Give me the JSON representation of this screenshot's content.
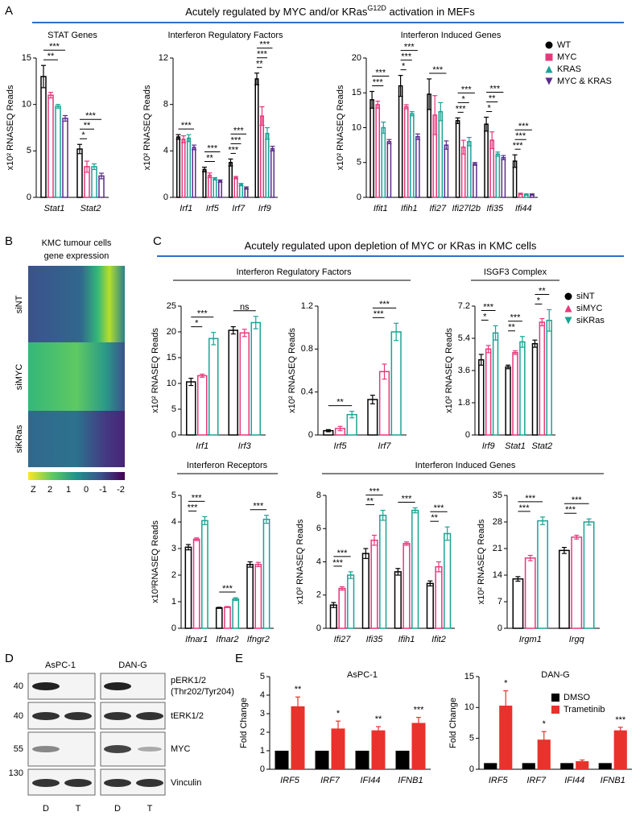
{
  "panel_letters": [
    "A",
    "B",
    "C",
    "D",
    "E"
  ],
  "mef_header": {
    "text": "Acutely regulated by MYC and/or KRas",
    "superscript": "G12D",
    "suffix": " activation in MEFs"
  },
  "kmc_header": "Acutely regulated upon depletion of MYC or KRas in KMC cells",
  "kmc_irf_header": "Interferon Regulatory Factors",
  "kmc_induced_header": "Interferon Induced Genes",
  "heatmap": {
    "title": [
      "KMC tumour cells",
      "gene expression"
    ],
    "rows": [
      "siNT",
      "siMYC",
      "siKRas"
    ],
    "colorbar_label": "Z",
    "colorbar_ticks": [
      2,
      1,
      0,
      -1,
      -2
    ]
  },
  "western_blot": {
    "cell_lines": [
      "AsPC-1",
      "DAN-G"
    ],
    "size_markers": [
      40,
      40,
      55,
      130
    ],
    "proteins": [
      {
        "name": "pERK1/2",
        "detail": "(Thr202/Tyr204)"
      },
      {
        "name": "tERK1/2"
      },
      {
        "name": "MYC"
      },
      {
        "name": "Vinculin"
      }
    ],
    "lanes": [
      "D",
      "T",
      "D",
      "T"
    ]
  },
  "chart_data": [
    {
      "type": "bar",
      "title": "STAT Genes",
      "ylabel": "x10² RNASEQ Reads",
      "bar_style": "outline",
      "categories": [
        "Stat1",
        "Stat2"
      ],
      "ylim": [
        0,
        15
      ],
      "yticks": [
        0,
        5,
        10,
        15
      ],
      "series": [
        {
          "name": "WT",
          "color": "#000000",
          "marker": "circle",
          "values": [
            13,
            5.2
          ],
          "errors": [
            1.2,
            0.5
          ]
        },
        {
          "name": "MYC",
          "color": "#e8377b",
          "marker": "square",
          "values": [
            11,
            3.3
          ],
          "errors": [
            0.3,
            0.6
          ],
          "significance": [
            null,
            "*"
          ]
        },
        {
          "name": "KRAS",
          "color": "#1aa394",
          "marker": "triangle",
          "values": [
            9.8,
            3.3
          ],
          "errors": [
            0.2,
            0.3
          ],
          "significance": [
            "**",
            "**"
          ]
        },
        {
          "name": "MYC & KRAS",
          "color": "#5a2d8c",
          "marker": "triangle-down",
          "values": [
            8.5,
            2.3
          ],
          "errors": [
            0.3,
            0.3
          ],
          "significance": [
            "***",
            "***"
          ]
        }
      ]
    },
    {
      "type": "bar",
      "title": "Interferon Regulatory Factors",
      "ylabel": "x10² RNASEQ Reads",
      "bar_style": "outline",
      "categories": [
        "Irf1",
        "Irf5",
        "Irf7",
        "Irf9"
      ],
      "ylim": [
        0,
        12
      ],
      "yticks": [
        0,
        4,
        8,
        12
      ],
      "series": [
        {
          "name": "WT",
          "color": "#000000",
          "marker": "circle",
          "values": [
            5.2,
            2.4,
            3.0,
            10.2
          ],
          "errors": [
            0.2,
            0.2,
            0.3,
            0.5
          ]
        },
        {
          "name": "MYC",
          "color": "#e8377b",
          "marker": "square",
          "values": [
            5.0,
            1.9,
            1.7,
            7.0
          ],
          "errors": [
            0.3,
            0.2,
            0.1,
            0.8
          ],
          "significance": [
            null,
            null,
            "***",
            "**"
          ]
        },
        {
          "name": "KRAS",
          "color": "#1aa394",
          "marker": "triangle",
          "values": [
            5.1,
            1.6,
            1.1,
            5.5
          ],
          "errors": [
            0.3,
            0.1,
            0.1,
            0.5
          ],
          "significance": [
            null,
            "**",
            "***",
            "***"
          ]
        },
        {
          "name": "MYC & KRAS",
          "color": "#5a2d8c",
          "marker": "triangle-down",
          "values": [
            4.3,
            1.4,
            0.8,
            4.2
          ],
          "errors": [
            0.2,
            0.1,
            0.1,
            0.2
          ],
          "significance": [
            "***",
            "***",
            "***",
            "***"
          ]
        }
      ]
    },
    {
      "type": "bar",
      "title": "Interferon Induced Genes",
      "ylabel": "x10² RNASEQ Reads",
      "bar_style": "outline",
      "legend": "right",
      "categories": [
        "Ifit1",
        "Ifih1",
        "Ifi27",
        "Ifi27l2b",
        "Ifi35",
        "Ifi44"
      ],
      "ylim": [
        0,
        20
      ],
      "yticks": [
        0,
        5,
        10,
        15,
        20
      ],
      "series": [
        {
          "name": "WT",
          "color": "#000000",
          "marker": "circle",
          "values": [
            14,
            16,
            14.8,
            11,
            10.5,
            5.2
          ],
          "errors": [
            1.2,
            1.5,
            2.2,
            0.4,
            1,
            0.9
          ]
        },
        {
          "name": "MYC",
          "color": "#e8377b",
          "marker": "square",
          "values": [
            13.3,
            13,
            11.8,
            7.2,
            8.2,
            0.5
          ],
          "errors": [
            0.5,
            0.3,
            2.8,
            1,
            1.2,
            0.1
          ],
          "significance": [
            null,
            "*",
            null,
            "***",
            "*",
            "***"
          ]
        },
        {
          "name": "KRAS",
          "color": "#1aa394",
          "marker": "triangle",
          "values": [
            10,
            12,
            12.3,
            8,
            6.2,
            0.4
          ],
          "errors": [
            0.8,
            0.3,
            1.3,
            0.6,
            0.3,
            0.1
          ],
          "significance": [
            "***",
            "***",
            null,
            "*",
            "**",
            "***"
          ]
        },
        {
          "name": "MYC & KRAS",
          "color": "#5a2d8c",
          "marker": "triangle-down",
          "values": [
            8,
            8.7,
            7.5,
            4.8,
            5.7,
            0.4
          ],
          "errors": [
            0.3,
            0.4,
            0.6,
            0.2,
            0.3,
            0.1
          ],
          "significance": [
            "***",
            "***",
            "***",
            "***",
            "***",
            "***"
          ]
        }
      ]
    },
    {
      "type": "bar",
      "ylabel": "x10² RNASEQ Reads",
      "bar_style": "outline",
      "categories": [
        "Irf1",
        "Irf3"
      ],
      "ylim": [
        0,
        25
      ],
      "yticks": [
        0,
        5,
        10,
        15,
        20,
        25
      ],
      "series": [
        {
          "name": "siNT",
          "color": "#000000",
          "marker": "circle",
          "values": [
            10.3,
            20.3
          ],
          "errors": [
            0.7,
            0.7
          ]
        },
        {
          "name": "siMYC",
          "color": "#e8377b",
          "marker": "triangle",
          "values": [
            11.5,
            19.8
          ],
          "errors": [
            0.3,
            0.7
          ],
          "significance": [
            "*",
            null
          ]
        },
        {
          "name": "siKRas",
          "color": "#1aa394",
          "marker": "triangle-down",
          "values": [
            18.7,
            21.8
          ],
          "errors": [
            1.2,
            1.2
          ],
          "significance": [
            "***",
            "ns"
          ]
        }
      ]
    },
    {
      "type": "bar",
      "ylabel": "x10² RNASEQ Reads",
      "bar_style": "outline",
      "categories": [
        "Irf5",
        "Irf7"
      ],
      "ylim": [
        0,
        1.2
      ],
      "yticks": [
        0,
        0.4,
        0.8,
        1.2
      ],
      "series": [
        {
          "name": "siNT",
          "color": "#000000",
          "marker": "circle",
          "values": [
            0.04,
            0.33
          ],
          "errors": [
            0.01,
            0.04
          ]
        },
        {
          "name": "siMYC",
          "color": "#e8377b",
          "marker": "triangle",
          "values": [
            0.06,
            0.59
          ],
          "errors": [
            0.02,
            0.07
          ],
          "significance": [
            null,
            "***"
          ]
        },
        {
          "name": "siKRas",
          "color": "#1aa394",
          "marker": "triangle-down",
          "values": [
            0.19,
            0.96
          ],
          "errors": [
            0.03,
            0.08
          ],
          "significance": [
            "**",
            "***"
          ]
        }
      ]
    },
    {
      "type": "bar",
      "title": "ISGF3 Complex",
      "ylabel": "x10² RNASEQ Reads",
      "bar_style": "outline",
      "legend": "right",
      "categories": [
        "Irf9",
        "Stat1",
        "Stat2"
      ],
      "ylim": [
        0,
        7.2
      ],
      "yticks": [
        0,
        1.8,
        3.6,
        5.4,
        7.2
      ],
      "series": [
        {
          "name": "siNT",
          "color": "#000000",
          "marker": "circle",
          "values": [
            4.2,
            3.8,
            5.1
          ],
          "errors": [
            0.3,
            0.1,
            0.2
          ]
        },
        {
          "name": "siMYC",
          "color": "#e8377b",
          "marker": "triangle",
          "values": [
            4.8,
            4.6,
            6.3
          ],
          "errors": [
            0.2,
            0.1,
            0.2
          ],
          "significance": [
            "*",
            "**",
            "*"
          ]
        },
        {
          "name": "siKRas",
          "color": "#1aa394",
          "marker": "triangle-down",
          "values": [
            5.7,
            5.2,
            6.4
          ],
          "errors": [
            0.4,
            0.3,
            0.6
          ],
          "significance": [
            "***",
            "***",
            "**"
          ]
        }
      ]
    },
    {
      "type": "bar",
      "title": "Interferon Receptors",
      "ylabel": "x10³RNASEQ Reads",
      "bar_style": "outline",
      "categories": [
        "Ifnar1",
        "Ifnar2",
        "Ifngr2"
      ],
      "ylim": [
        0,
        5
      ],
      "yticks": [
        0,
        1,
        2,
        3,
        4,
        5
      ],
      "series": [
        {
          "name": "siNT",
          "color": "#000000",
          "marker": "circle",
          "values": [
            3.05,
            0.77,
            2.4
          ],
          "errors": [
            0.1,
            0.02,
            0.1
          ]
        },
        {
          "name": "siMYC",
          "color": "#e8377b",
          "marker": "triangle",
          "values": [
            3.35,
            0.8,
            2.4
          ],
          "errors": [
            0.05,
            0.02,
            0.08
          ],
          "significance": [
            "***",
            null,
            null
          ]
        },
        {
          "name": "siKRas",
          "color": "#1aa394",
          "marker": "triangle-down",
          "values": [
            4.05,
            1.1,
            4.1
          ],
          "errors": [
            0.15,
            0.05,
            0.15
          ],
          "significance": [
            "***",
            "***",
            "***"
          ]
        }
      ]
    },
    {
      "type": "bar",
      "ylabel": "x10² RNASEQ Reads",
      "bar_style": "outline",
      "categories": [
        "Ifi27",
        "Ifi35",
        "Ifih1",
        "Ifit2"
      ],
      "ylim": [
        0,
        8
      ],
      "yticks": [
        0,
        2,
        4,
        6,
        8
      ],
      "series": [
        {
          "name": "siNT",
          "color": "#000000",
          "marker": "circle",
          "values": [
            1.4,
            4.5,
            3.4,
            2.7
          ],
          "errors": [
            0.15,
            0.3,
            0.2,
            0.15
          ]
        },
        {
          "name": "siMYC",
          "color": "#e8377b",
          "marker": "triangle",
          "values": [
            2.4,
            5.3,
            5.1,
            3.7
          ],
          "errors": [
            0.1,
            0.3,
            0.1,
            0.3
          ],
          "significance": [
            "***",
            "**",
            null,
            "**"
          ]
        },
        {
          "name": "siKRas",
          "color": "#1aa394",
          "marker": "triangle-down",
          "values": [
            3.2,
            6.8,
            7.1,
            5.7
          ],
          "errors": [
            0.2,
            0.3,
            0.15,
            0.4
          ],
          "significance": [
            "***",
            "***",
            "***",
            "***"
          ]
        }
      ]
    },
    {
      "type": "bar",
      "ylabel": "x10² RNASEQ Reads",
      "bar_style": "outline",
      "categories": [
        "Irgm1",
        "Irgq"
      ],
      "ylim": [
        0,
        35
      ],
      "yticks": [
        0,
        7,
        14,
        21,
        28,
        35
      ],
      "series": [
        {
          "name": "siNT",
          "color": "#000000",
          "marker": "circle",
          "values": [
            13,
            20.5
          ],
          "errors": [
            0.6,
            0.8
          ]
        },
        {
          "name": "siMYC",
          "color": "#e8377b",
          "marker": "triangle",
          "values": [
            18.5,
            24
          ],
          "errors": [
            0.7,
            0.5
          ],
          "significance": [
            "***",
            "***"
          ]
        },
        {
          "name": "siKRas",
          "color": "#1aa394",
          "marker": "triangle-down",
          "values": [
            28.3,
            28
          ],
          "errors": [
            1,
            0.8
          ],
          "significance": [
            "***",
            "***"
          ]
        }
      ]
    },
    {
      "type": "bar",
      "title": "AsPC-1",
      "ylabel": "Fold Change",
      "bar_style": "filled",
      "categories": [
        "IRF5",
        "IRF7",
        "IFI44",
        "IFNB1"
      ],
      "ylim": [
        0,
        5
      ],
      "yticks": [
        0,
        1,
        2,
        3,
        4,
        5
      ],
      "series": [
        {
          "name": "DMSO",
          "color": "#000000",
          "marker": "square",
          "values": [
            1,
            1,
            1,
            1
          ]
        },
        {
          "name": "Trametinib",
          "color": "#e8322b",
          "marker": "square",
          "values": [
            3.4,
            2.2,
            2.1,
            2.5
          ],
          "errors": [
            0.5,
            0.4,
            0.2,
            0.3
          ],
          "significance": [
            "**",
            "*",
            "**",
            "***"
          ]
        }
      ]
    },
    {
      "type": "bar",
      "title": "DAN-G",
      "ylabel": "Fold Change",
      "bar_style": "filled",
      "legend": "upper right",
      "categories": [
        "IRF5",
        "IRF7",
        "IFI44",
        "IFNB1"
      ],
      "ylim": [
        0,
        15
      ],
      "yticks": [
        0,
        5,
        10,
        15
      ],
      "series": [
        {
          "name": "DMSO",
          "color": "#000000",
          "marker": "square",
          "values": [
            1,
            1,
            1,
            1
          ]
        },
        {
          "name": "Trametinib",
          "color": "#e8322b",
          "marker": "square",
          "values": [
            10.3,
            4.8,
            1.3,
            6.3
          ],
          "errors": [
            2.4,
            1.3,
            0.2,
            0.5
          ],
          "significance": [
            "*",
            "*",
            null,
            "***"
          ]
        }
      ]
    }
  ]
}
